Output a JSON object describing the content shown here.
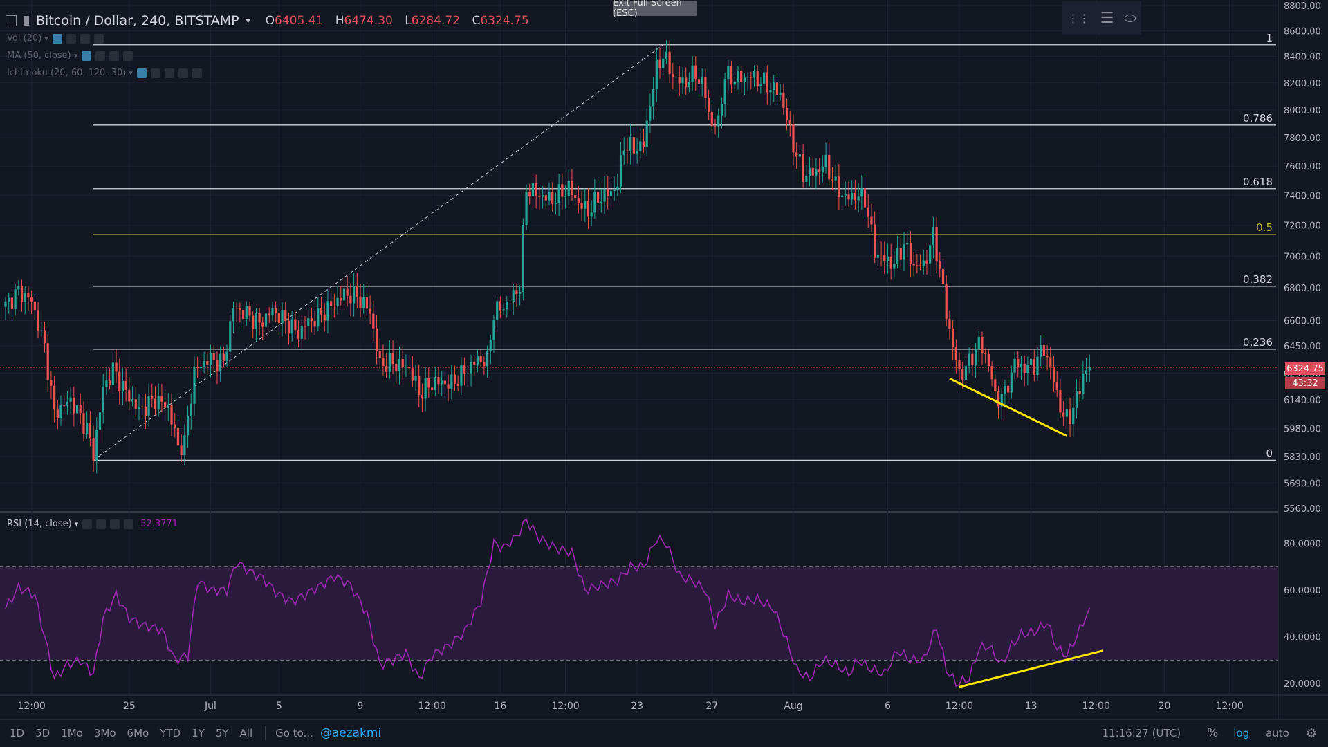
{
  "header": {
    "symbol": "Bitcoin / Dollar, 240, BITSTAMP",
    "open_label": "O",
    "open": "6405.41",
    "high_label": "H",
    "high": "6474.30",
    "low_label": "L",
    "low": "6284.72",
    "close_label": "C",
    "close": "6324.75"
  },
  "indicators": {
    "vol": "Vol (20)",
    "ma": "MA (50, close)",
    "ichimoku": "Ichimoku (20, 60, 120, 30)",
    "rsi": "RSI (14, close)",
    "rsi_value": "52.3771"
  },
  "exit_fullscreen": "Exit Full Screen (ESC)",
  "price_tag": "6324.75",
  "countdown": "43:32",
  "bottom": {
    "ranges": [
      "1D",
      "5D",
      "1Mo",
      "3Mo",
      "6Mo",
      "YTD",
      "1Y",
      "5Y",
      "All"
    ],
    "goto": "Go to...",
    "handle": "@aezakmi",
    "time": "11:16:27 (UTC)",
    "percent": "%",
    "log": "log",
    "auto": "auto"
  },
  "colors": {
    "background": "#131722",
    "up": "#26a69a",
    "down": "#ef5350",
    "fib": "#d1d4dc",
    "fib_half": "#b5b52a",
    "rsi_line": "#9c27b0",
    "rsi_band": "#2a1b3d",
    "trend": "#ffe600"
  },
  "chart_data": [
    {
      "type": "candlestick",
      "title": "Bitcoin / Dollar, 240, BITSTAMP",
      "y_axis_ticks": [
        5560,
        5690,
        5830,
        5980,
        6140,
        6290,
        6450,
        6600,
        6800,
        7000,
        7200,
        7400,
        7600,
        7800,
        8000,
        8200,
        8400,
        8600,
        8800
      ],
      "x_axis_ticks": [
        "12:00",
        "25",
        "Jul",
        "5",
        "9",
        "12:00",
        "16",
        "12:00",
        "23",
        "27",
        "Aug",
        "6",
        "12:00",
        "13",
        "12:00",
        "20",
        "12:00"
      ],
      "ylim": [
        5560,
        8800
      ],
      "log_scale": true,
      "fib_levels": [
        {
          "label": "1",
          "value": 8490
        },
        {
          "label": "0.786",
          "value": 7890
        },
        {
          "label": "0.618",
          "value": 7445
        },
        {
          "label": "0.5",
          "value": 7140
        },
        {
          "label": "0.382",
          "value": 6810
        },
        {
          "label": "0.236",
          "value": 6430
        },
        {
          "label": "0",
          "value": 5810
        }
      ],
      "last_price": 6324.75,
      "ohlc_anchors": [
        {
          "x": 0,
          "close": 6690
        },
        {
          "x": 4,
          "close": 6780
        },
        {
          "x": 8,
          "close": 6720
        },
        {
          "x": 12,
          "close": 6440
        },
        {
          "x": 15,
          "close": 6060
        },
        {
          "x": 20,
          "close": 6140
        },
        {
          "x": 25,
          "close": 5980
        },
        {
          "x": 27,
          "close": 5840
        },
        {
          "x": 30,
          "close": 6200
        },
        {
          "x": 33,
          "close": 6310
        },
        {
          "x": 37,
          "close": 6180
        },
        {
          "x": 41,
          "close": 6080
        },
        {
          "x": 46,
          "close": 6140
        },
        {
          "x": 50,
          "close": 6100
        },
        {
          "x": 53,
          "close": 5880
        },
        {
          "x": 55,
          "close": 5900
        },
        {
          "x": 58,
          "close": 6300
        },
        {
          "x": 62,
          "close": 6370
        },
        {
          "x": 67,
          "close": 6350
        },
        {
          "x": 70,
          "close": 6680
        },
        {
          "x": 74,
          "close": 6640
        },
        {
          "x": 78,
          "close": 6580
        },
        {
          "x": 82,
          "close": 6660
        },
        {
          "x": 87,
          "close": 6580
        },
        {
          "x": 90,
          "close": 6520
        },
        {
          "x": 92,
          "close": 6580
        },
        {
          "x": 96,
          "close": 6620
        },
        {
          "x": 100,
          "close": 6690
        },
        {
          "x": 104,
          "close": 6760
        },
        {
          "x": 108,
          "close": 6750
        },
        {
          "x": 112,
          "close": 6650
        },
        {
          "x": 115,
          "close": 6340
        },
        {
          "x": 119,
          "close": 6350
        },
        {
          "x": 124,
          "close": 6320
        },
        {
          "x": 127,
          "close": 6180
        },
        {
          "x": 132,
          "close": 6240
        },
        {
          "x": 137,
          "close": 6230
        },
        {
          "x": 140,
          "close": 6280
        },
        {
          "x": 145,
          "close": 6370
        },
        {
          "x": 148,
          "close": 6360
        },
        {
          "x": 150,
          "close": 6650
        },
        {
          "x": 154,
          "close": 6700
        },
        {
          "x": 158,
          "close": 6810
        },
        {
          "x": 160,
          "close": 7450
        },
        {
          "x": 164,
          "close": 7400
        },
        {
          "x": 168,
          "close": 7370
        },
        {
          "x": 173,
          "close": 7450
        },
        {
          "x": 176,
          "close": 7350
        },
        {
          "x": 179,
          "close": 7290
        },
        {
          "x": 182,
          "close": 7380
        },
        {
          "x": 186,
          "close": 7420
        },
        {
          "x": 188,
          "close": 7480
        },
        {
          "x": 190,
          "close": 7750
        },
        {
          "x": 193,
          "close": 7720
        },
        {
          "x": 196,
          "close": 7750
        },
        {
          "x": 198,
          "close": 8050
        },
        {
          "x": 200,
          "close": 8300
        },
        {
          "x": 202,
          "close": 8420
        },
        {
          "x": 204,
          "close": 8300
        },
        {
          "x": 206,
          "close": 8220
        },
        {
          "x": 209,
          "close": 8200
        },
        {
          "x": 212,
          "close": 8280
        },
        {
          "x": 215,
          "close": 8120
        },
        {
          "x": 217,
          "close": 7870
        },
        {
          "x": 219,
          "close": 7920
        },
        {
          "x": 221,
          "close": 8250
        },
        {
          "x": 225,
          "close": 8230
        },
        {
          "x": 229,
          "close": 8250
        },
        {
          "x": 233,
          "close": 8200
        },
        {
          "x": 238,
          "close": 8120
        },
        {
          "x": 242,
          "close": 7750
        },
        {
          "x": 245,
          "close": 7540
        },
        {
          "x": 249,
          "close": 7560
        },
        {
          "x": 252,
          "close": 7620
        },
        {
          "x": 255,
          "close": 7460
        },
        {
          "x": 258,
          "close": 7380
        },
        {
          "x": 261,
          "close": 7400
        },
        {
          "x": 264,
          "close": 7380
        },
        {
          "x": 267,
          "close": 7030
        },
        {
          "x": 270,
          "close": 6980
        },
        {
          "x": 273,
          "close": 6950
        },
        {
          "x": 276,
          "close": 7080
        },
        {
          "x": 279,
          "close": 6940
        },
        {
          "x": 282,
          "close": 6940
        },
        {
          "x": 285,
          "close": 7130
        },
        {
          "x": 287,
          "close": 6920
        },
        {
          "x": 289,
          "close": 6640
        },
        {
          "x": 291,
          "close": 6450
        },
        {
          "x": 293,
          "close": 6280
        },
        {
          "x": 296,
          "close": 6350
        },
        {
          "x": 299,
          "close": 6470
        },
        {
          "x": 302,
          "close": 6350
        },
        {
          "x": 304,
          "close": 6150
        },
        {
          "x": 307,
          "close": 6170
        },
        {
          "x": 310,
          "close": 6350
        },
        {
          "x": 313,
          "close": 6320
        },
        {
          "x": 316,
          "close": 6340
        },
        {
          "x": 319,
          "close": 6440
        },
        {
          "x": 322,
          "close": 6250
        },
        {
          "x": 325,
          "close": 6030
        },
        {
          "x": 328,
          "close": 6080
        },
        {
          "x": 331,
          "close": 6280
        },
        {
          "x": 333,
          "close": 6324.75
        }
      ],
      "total_bars": 334,
      "trendlines": [
        {
          "from": {
            "x": 290,
            "value": 6260
          },
          "to": {
            "x": 326,
            "value": 5940
          },
          "color": "yellow"
        }
      ],
      "fib_anchor_line": {
        "from": {
          "x": 27,
          "value": 5810
        },
        "to": {
          "x": 202,
          "value": 8490
        },
        "style": "dashed"
      }
    },
    {
      "type": "line",
      "title": "RSI (14, close)",
      "y_axis_ticks": [
        20,
        40,
        60,
        80
      ],
      "ylim": [
        15,
        92
      ],
      "band": [
        30,
        70
      ],
      "last_value": 52.3771,
      "anchors": [
        {
          "x": 0,
          "y": 52
        },
        {
          "x": 4,
          "y": 61
        },
        {
          "x": 9,
          "y": 58
        },
        {
          "x": 12,
          "y": 40
        },
        {
          "x": 15,
          "y": 22
        },
        {
          "x": 19,
          "y": 28
        },
        {
          "x": 23,
          "y": 30
        },
        {
          "x": 27,
          "y": 24
        },
        {
          "x": 30,
          "y": 48
        },
        {
          "x": 34,
          "y": 58
        },
        {
          "x": 38,
          "y": 48
        },
        {
          "x": 42,
          "y": 45
        },
        {
          "x": 48,
          "y": 43
        },
        {
          "x": 52,
          "y": 30
        },
        {
          "x": 56,
          "y": 32
        },
        {
          "x": 59,
          "y": 64
        },
        {
          "x": 63,
          "y": 60
        },
        {
          "x": 68,
          "y": 60
        },
        {
          "x": 71,
          "y": 72
        },
        {
          "x": 75,
          "y": 68
        },
        {
          "x": 79,
          "y": 65
        },
        {
          "x": 84,
          "y": 58
        },
        {
          "x": 88,
          "y": 55
        },
        {
          "x": 92,
          "y": 58
        },
        {
          "x": 97,
          "y": 62
        },
        {
          "x": 101,
          "y": 66
        },
        {
          "x": 106,
          "y": 62
        },
        {
          "x": 111,
          "y": 50
        },
        {
          "x": 115,
          "y": 28
        },
        {
          "x": 119,
          "y": 30
        },
        {
          "x": 123,
          "y": 33
        },
        {
          "x": 127,
          "y": 22
        },
        {
          "x": 131,
          "y": 32
        },
        {
          "x": 136,
          "y": 36
        },
        {
          "x": 141,
          "y": 42
        },
        {
          "x": 146,
          "y": 55
        },
        {
          "x": 150,
          "y": 80
        },
        {
          "x": 153,
          "y": 78
        },
        {
          "x": 157,
          "y": 83
        },
        {
          "x": 160,
          "y": 90
        },
        {
          "x": 164,
          "y": 82
        },
        {
          "x": 169,
          "y": 78
        },
        {
          "x": 174,
          "y": 76
        },
        {
          "x": 178,
          "y": 60
        },
        {
          "x": 183,
          "y": 62
        },
        {
          "x": 188,
          "y": 64
        },
        {
          "x": 192,
          "y": 70
        },
        {
          "x": 196,
          "y": 70
        },
        {
          "x": 200,
          "y": 82
        },
        {
          "x": 203,
          "y": 80
        },
        {
          "x": 207,
          "y": 66
        },
        {
          "x": 211,
          "y": 64
        },
        {
          "x": 215,
          "y": 60
        },
        {
          "x": 218,
          "y": 45
        },
        {
          "x": 222,
          "y": 58
        },
        {
          "x": 226,
          "y": 55
        },
        {
          "x": 231,
          "y": 56
        },
        {
          "x": 236,
          "y": 52
        },
        {
          "x": 240,
          "y": 38
        },
        {
          "x": 243,
          "y": 26
        },
        {
          "x": 247,
          "y": 22
        },
        {
          "x": 251,
          "y": 30
        },
        {
          "x": 255,
          "y": 28
        },
        {
          "x": 259,
          "y": 24
        },
        {
          "x": 262,
          "y": 30
        },
        {
          "x": 266,
          "y": 26
        },
        {
          "x": 270,
          "y": 24
        },
        {
          "x": 274,
          "y": 34
        },
        {
          "x": 278,
          "y": 30
        },
        {
          "x": 282,
          "y": 30
        },
        {
          "x": 286,
          "y": 44
        },
        {
          "x": 289,
          "y": 26
        },
        {
          "x": 292,
          "y": 20
        },
        {
          "x": 296,
          "y": 22
        },
        {
          "x": 299,
          "y": 35
        },
        {
          "x": 302,
          "y": 36
        },
        {
          "x": 306,
          "y": 28
        },
        {
          "x": 309,
          "y": 36
        },
        {
          "x": 312,
          "y": 41
        },
        {
          "x": 316,
          "y": 42
        },
        {
          "x": 320,
          "y": 46
        },
        {
          "x": 323,
          "y": 35
        },
        {
          "x": 326,
          "y": 32
        },
        {
          "x": 329,
          "y": 40
        },
        {
          "x": 333,
          "y": 52.38
        }
      ],
      "trendlines": [
        {
          "from": {
            "x": 293,
            "y": 18.5
          },
          "to": {
            "x": 337,
            "y": 34
          },
          "color": "yellow"
        }
      ]
    }
  ]
}
